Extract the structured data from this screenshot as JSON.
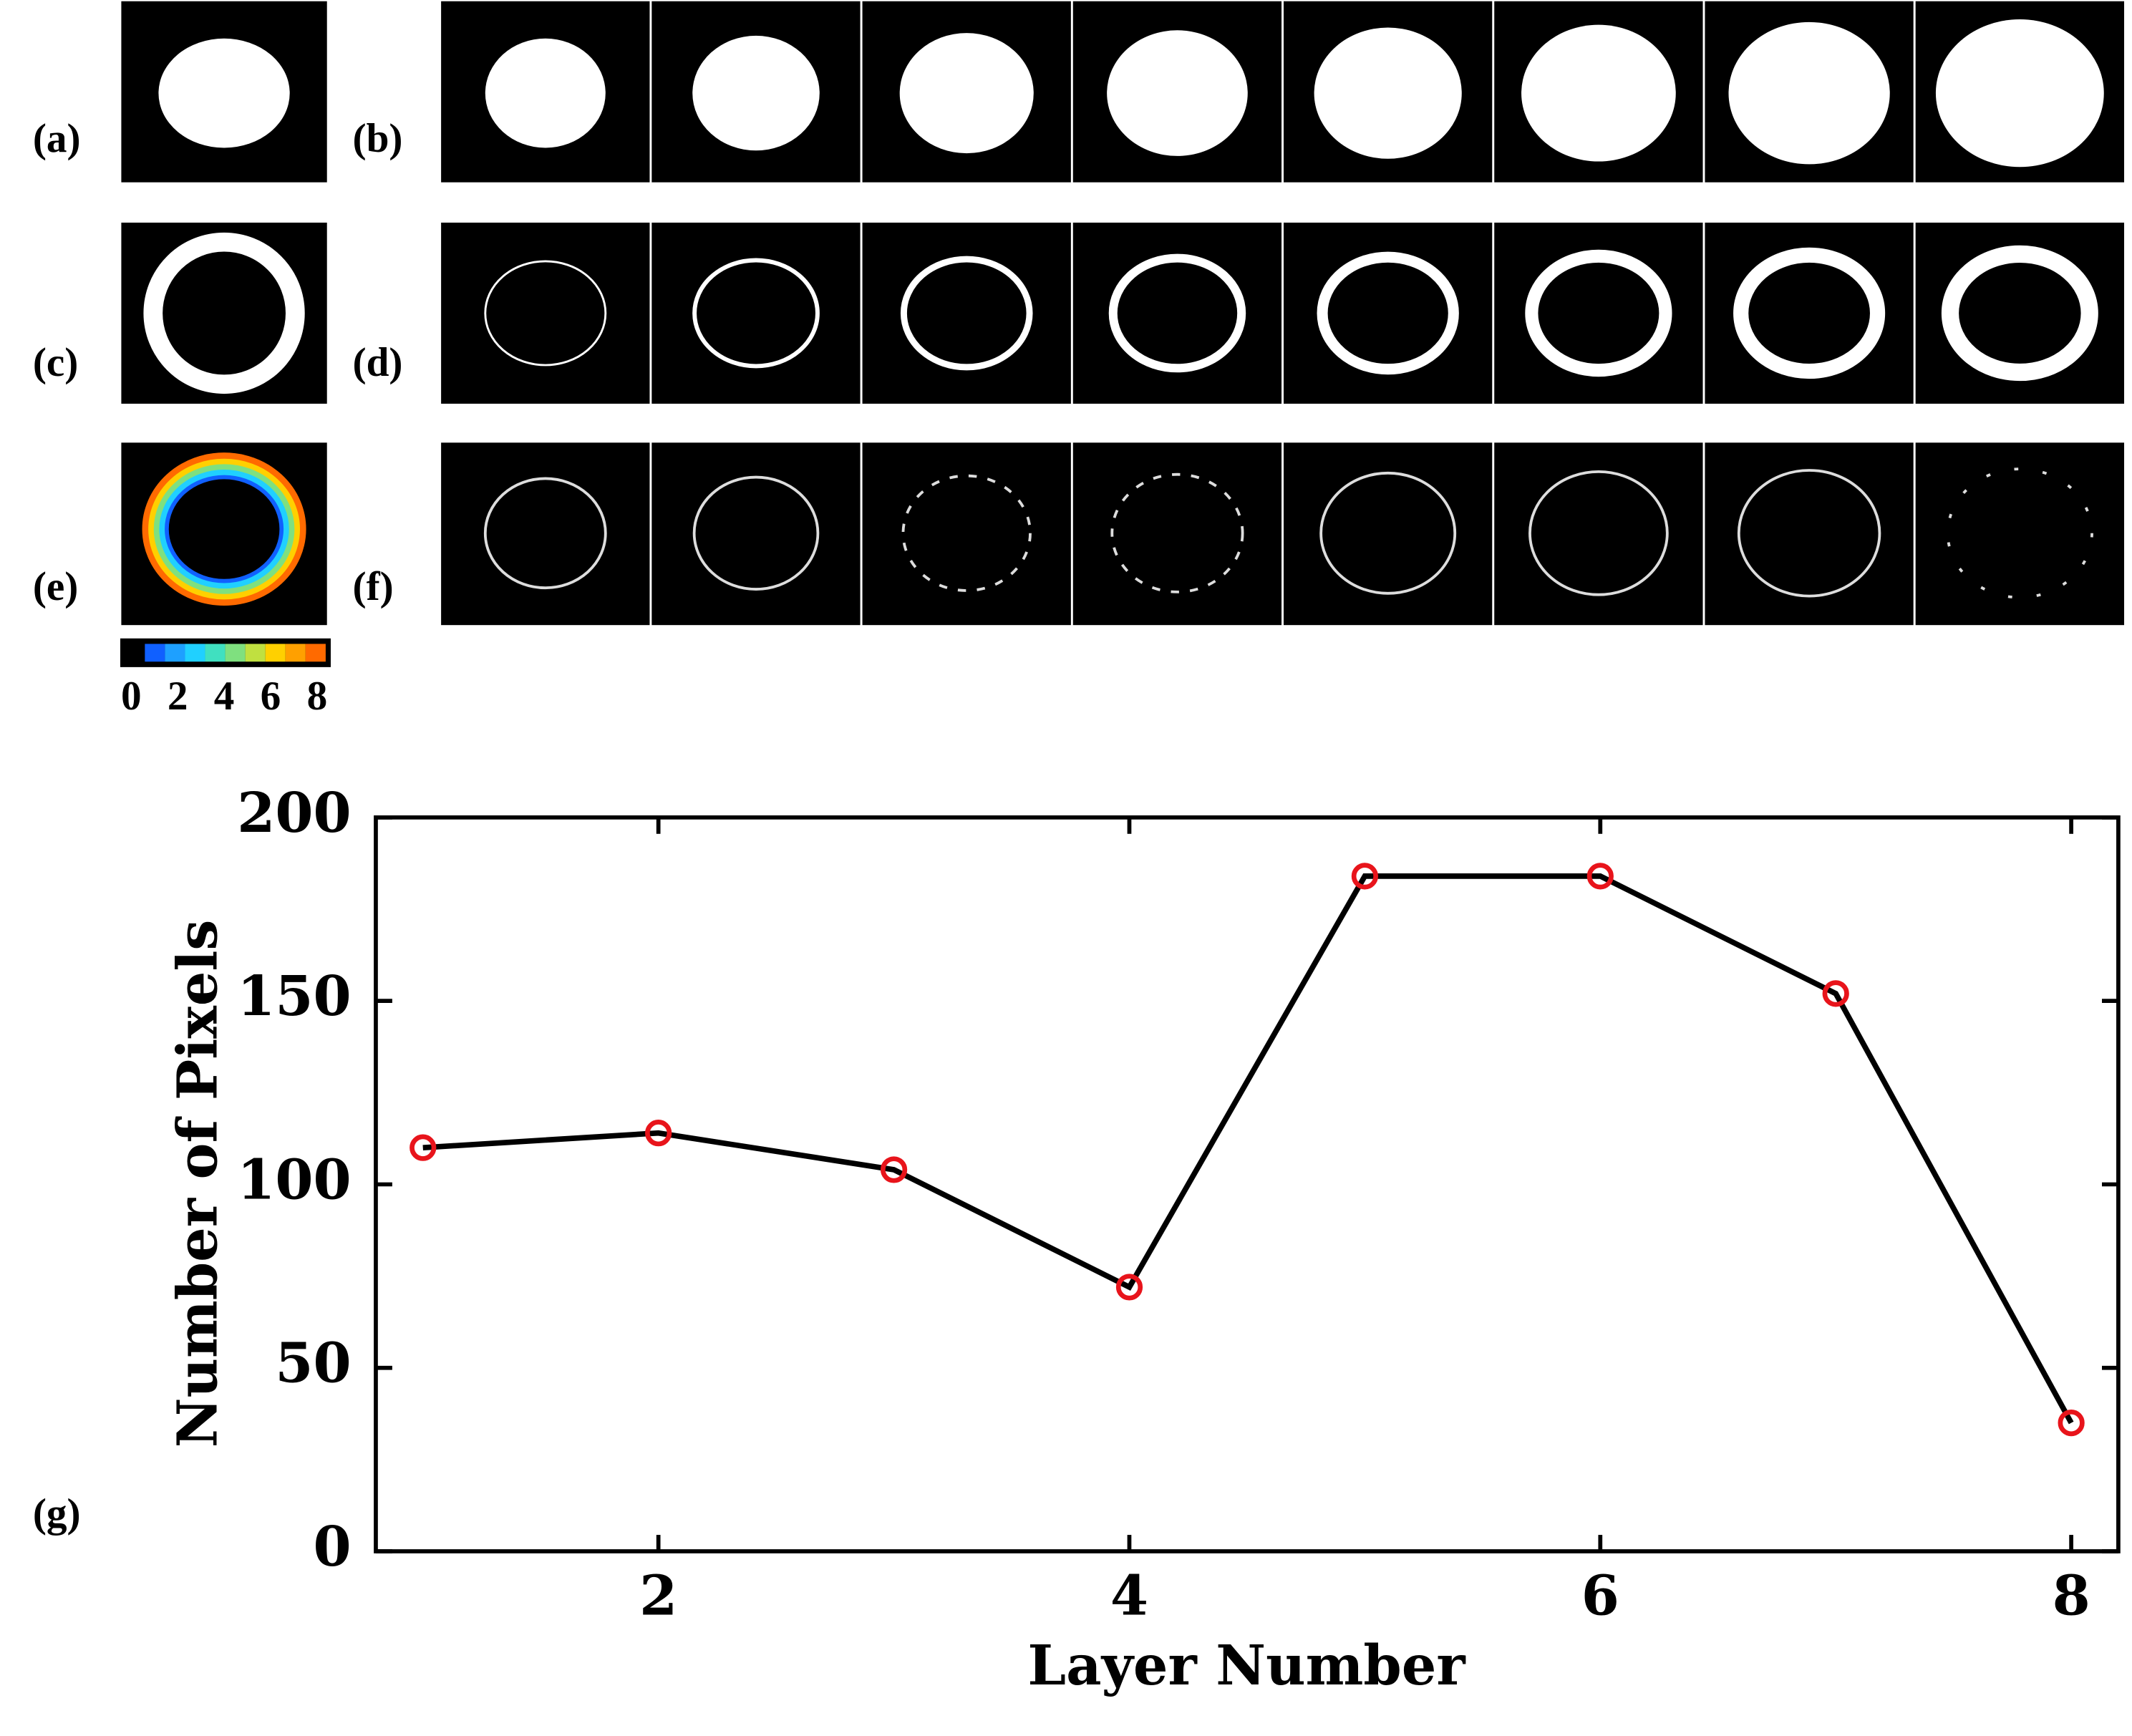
{
  "panel_labels": [
    "(a)",
    "(b)",
    "(c)",
    "(d)",
    "(e)",
    "(f)",
    "(g)"
  ],
  "colorbar_ticks": [
    "0",
    "2",
    "4",
    "6",
    "8"
  ],
  "chart_data": {
    "type": "line",
    "x_label": "Layer Number",
    "y_label": "Number of Pixels",
    "x": [
      1,
      2,
      3,
      4,
      5,
      6,
      7,
      8
    ],
    "values": [
      110,
      114,
      104,
      72,
      184,
      184,
      152,
      35
    ],
    "color": "#000000",
    "marker_color": "#e8141b",
    "xlim": [
      0.8,
      8.2
    ],
    "ylim": [
      0,
      200
    ],
    "xticks": [
      2,
      4,
      6,
      8
    ],
    "yticks": [
      0,
      50,
      100,
      150,
      200
    ]
  }
}
